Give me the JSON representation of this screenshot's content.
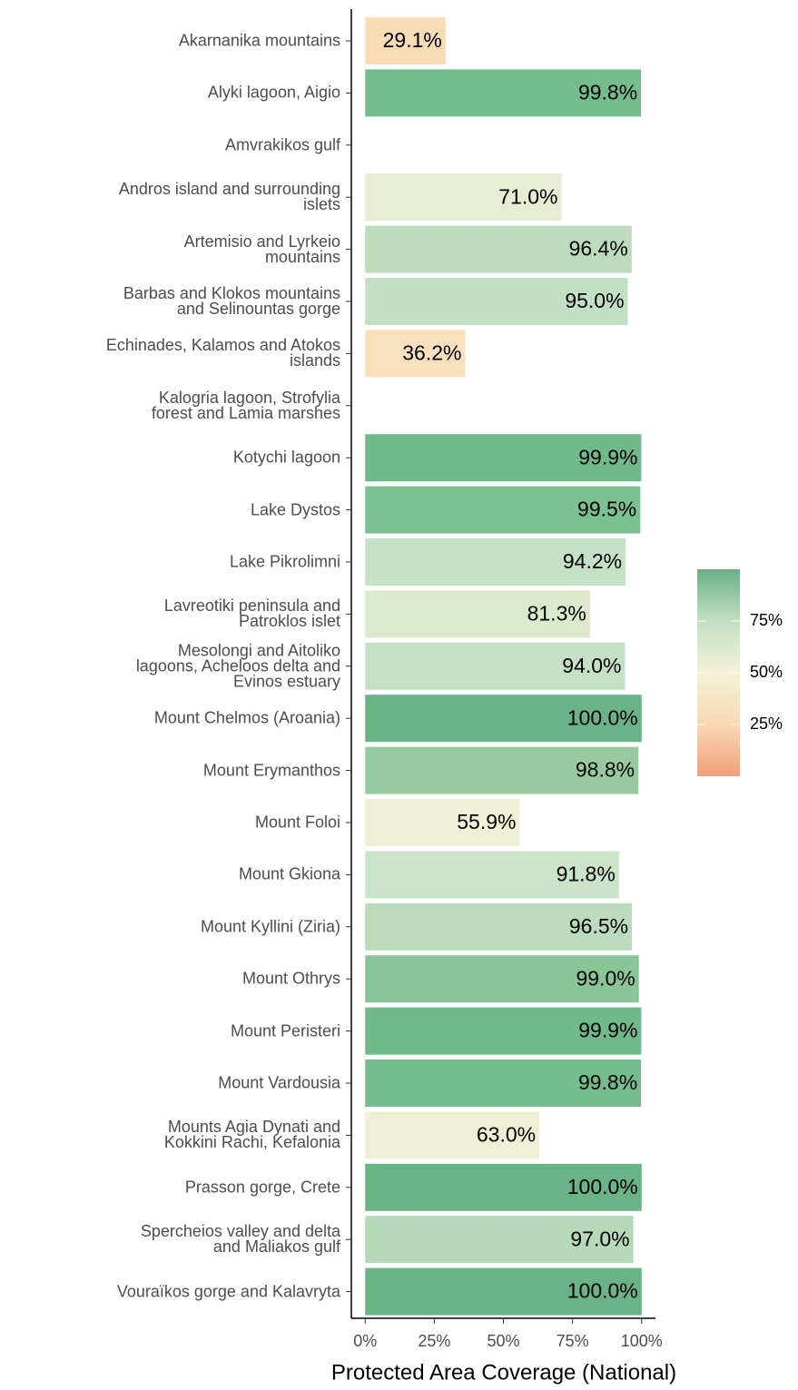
{
  "chart_data": {
    "type": "bar",
    "orientation": "horizontal",
    "categories": [
      "Akarnanika mountains",
      "Alyki lagoon, Aigio",
      "Amvrakikos gulf",
      "Andros island and surrounding\nislets",
      "Artemisio and Lyrkeio\nmountains",
      "Barbas and Klokos mountains\nand Selinountas gorge",
      "Echinades, Kalamos and Atokos\nislands",
      "Kalogria lagoon, Strofylia\nforest and Lamia marshes",
      "Kotychi lagoon",
      "Lake Dystos",
      "Lake Pikrolimni",
      "Lavreotiki peninsula and\nPatroklos islet",
      "Mesolongi and Aitoliko\nlagoons, Acheloos delta and\nEvinos estuary",
      "Mount Chelmos (Aroania)",
      "Mount Erymanthos",
      "Mount Foloi",
      "Mount Gkiona",
      "Mount Kyllini (Ziria)",
      "Mount Othrys",
      "Mount Peristeri",
      "Mount Vardousia",
      "Mounts Agia Dynati and\nKokkini Rachi, Kefalonia",
      "Prasson gorge, Crete",
      "Spercheios valley and delta\nand Maliakos gulf",
      "Vouraïkos gorge and Kalavryta"
    ],
    "values": [
      29.1,
      99.8,
      null,
      71.0,
      96.4,
      95.0,
      36.2,
      null,
      99.9,
      99.5,
      94.2,
      81.3,
      94.0,
      100.0,
      98.8,
      55.9,
      91.8,
      96.5,
      99.0,
      99.9,
      99.8,
      63.0,
      100.0,
      97.0,
      100.0
    ],
    "value_labels": [
      "29.1%",
      "99.8%",
      null,
      "71.0%",
      "96.4%",
      "95.0%",
      "36.2%",
      null,
      "99.9%",
      "99.5%",
      "94.2%",
      "81.3%",
      "94.0%",
      "100.0%",
      "98.8%",
      "55.9%",
      "91.8%",
      "96.5%",
      "99.0%",
      "99.9%",
      "99.8%",
      "63.0%",
      "100.0%",
      "97.0%",
      "100.0%"
    ],
    "colors": [
      "#f8dcb6",
      "#74bb8d",
      null,
      "#e6edd3",
      "#bcdcbd",
      "#c3dfc3",
      "#f8e0bc",
      null,
      "#70b98a",
      "#7cbf93",
      "#c6e0c5",
      "#dce9cc",
      "#c6e0c5",
      "#6ab386",
      "#97ca9f",
      "#f0f0d6",
      "#cbe3c8",
      "#bbdbbc",
      "#8ac598",
      "#70b98a",
      "#74bb8d",
      "#eeefd4",
      "#6ab386",
      "#b6d9b9",
      "#6ab386"
    ],
    "xlabel": "Protected Area Coverage (National)",
    "xlim": [
      -5,
      105
    ],
    "xticks": [
      {
        "value": 0,
        "label": "0%"
      },
      {
        "value": 25,
        "label": "25%"
      },
      {
        "value": 50,
        "label": "50%"
      },
      {
        "value": 75,
        "label": "75%"
      },
      {
        "value": 100,
        "label": "100%"
      }
    ],
    "colorbar": {
      "colors": [
        "#6aaf84",
        "#c2dfc2",
        "#f5f2d6",
        "#f8d9b2",
        "#f39e7c"
      ],
      "ylim": [
        0,
        100
      ],
      "yticks": [
        {
          "value": 25,
          "label": "25%"
        },
        {
          "value": 50,
          "label": "50%"
        },
        {
          "value": 75,
          "label": "75%"
        }
      ]
    }
  }
}
